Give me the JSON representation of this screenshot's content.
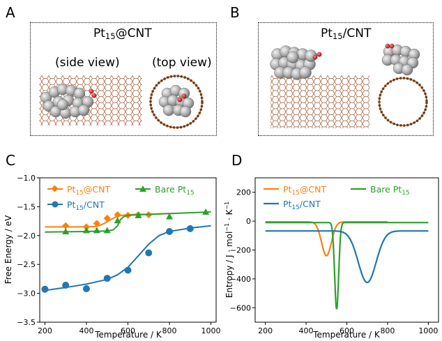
{
  "panels": {
    "a_letter": "A",
    "b_letter": "B",
    "c_letter": "C",
    "d_letter": "D"
  },
  "panel_a": {
    "title_main": "Pt",
    "title_sub": "15",
    "title_rest": "@CNT",
    "side_view": "(side view)",
    "top_view": "(top view)"
  },
  "panel_b": {
    "title_main": "Pt",
    "title_sub": "15",
    "title_rest": "/CNT"
  },
  "colors": {
    "pt15cnt_at": "#ff7f0e",
    "pt15cnt_slash": "#1f77b4",
    "bare": "#2ca02c",
    "cnt": "#a0522d",
    "pt_atom": "#b0b0b0",
    "oxygen": "#d62728"
  },
  "chart_data": [
    {
      "type": "line",
      "xlabel": "Temperature / K",
      "ylabel": "Free Energy / eV",
      "xlim": [
        175,
        1025
      ],
      "ylim": [
        -3.5,
        -1.0
      ],
      "xticks": [
        "200",
        "400",
        "600",
        "800",
        "1000"
      ],
      "yticks": [
        "−1.0",
        "−1.5",
        "−2.0",
        "−2.5",
        "−3.0",
        "−3.5"
      ],
      "legend": [
        "Pt15@CNT",
        "Bare Pt15",
        "Pt15/CNT"
      ],
      "series": [
        {
          "name": "Pt15@CNT",
          "marker": "diamond",
          "points_x": [
            300,
            400,
            450,
            500,
            550,
            600,
            650,
            700
          ],
          "points_y": [
            -1.83,
            -1.85,
            -1.79,
            -1.7,
            -1.64,
            -1.65,
            -1.64,
            -1.64
          ],
          "curve_x": [
            200,
            400,
            450,
            480,
            510,
            540,
            570,
            600,
            650,
            700,
            800
          ],
          "curve_y": [
            -1.85,
            -1.85,
            -1.84,
            -1.8,
            -1.74,
            -1.68,
            -1.65,
            -1.64,
            -1.63,
            -1.63,
            -1.62
          ]
        },
        {
          "name": "Bare Pt15",
          "marker": "triangle",
          "points_x": [
            300,
            400,
            450,
            500,
            550,
            650,
            800,
            975
          ],
          "points_y": [
            -1.93,
            -1.91,
            -1.91,
            -1.91,
            -1.74,
            -1.65,
            -1.67,
            -1.59
          ],
          "curve_x": [
            200,
            400,
            500,
            530,
            550,
            565,
            580,
            600,
            650,
            800,
            1000
          ],
          "curve_y": [
            -1.94,
            -1.93,
            -1.92,
            -1.9,
            -1.83,
            -1.72,
            -1.67,
            -1.65,
            -1.64,
            -1.62,
            -1.59
          ]
        },
        {
          "name": "Pt15/CNT",
          "marker": "circle",
          "points_x": [
            200,
            300,
            400,
            500,
            600,
            700,
            800,
            900
          ],
          "points_y": [
            -2.93,
            -2.86,
            -2.92,
            -2.74,
            -2.6,
            -2.3,
            -1.93,
            -1.88
          ],
          "curve_x": [
            200,
            300,
            400,
            500,
            550,
            600,
            650,
            700,
            750,
            800,
            900,
            1000
          ],
          "curve_y": [
            -2.95,
            -2.9,
            -2.84,
            -2.76,
            -2.68,
            -2.55,
            -2.35,
            -2.15,
            -2.0,
            -1.93,
            -1.87,
            -1.83
          ]
        }
      ]
    },
    {
      "type": "line",
      "xlabel": "Temperature / K",
      "ylabel": "Entropy / J·mol⁻¹·K⁻¹",
      "xlim": [
        150,
        1050
      ],
      "ylim": [
        -700,
        300
      ],
      "xticks": [
        "200",
        "400",
        "600",
        "800",
        "1000"
      ],
      "yticks": [
        "200",
        "0",
        "−200",
        "−400",
        "−600"
      ],
      "legend": [
        "Pt15@CNT",
        "Bare Pt15",
        "Pt15/CNT"
      ],
      "series": [
        {
          "name": "Pt15@CNT",
          "x_start": 200,
          "x_end": 800,
          "baseline": -5,
          "peak_x": 500,
          "peak_y": -240,
          "width": 34
        },
        {
          "name": "Bare Pt15",
          "x_start": 200,
          "x_end": 1000,
          "baseline": -10,
          "peak_x": 550,
          "peak_y": -610,
          "width": 14
        },
        {
          "name": "Pt15/CNT",
          "x_start": 200,
          "x_end": 1000,
          "baseline": -68,
          "peak_x": 700,
          "peak_y": -425,
          "width": 62
        }
      ]
    }
  ]
}
